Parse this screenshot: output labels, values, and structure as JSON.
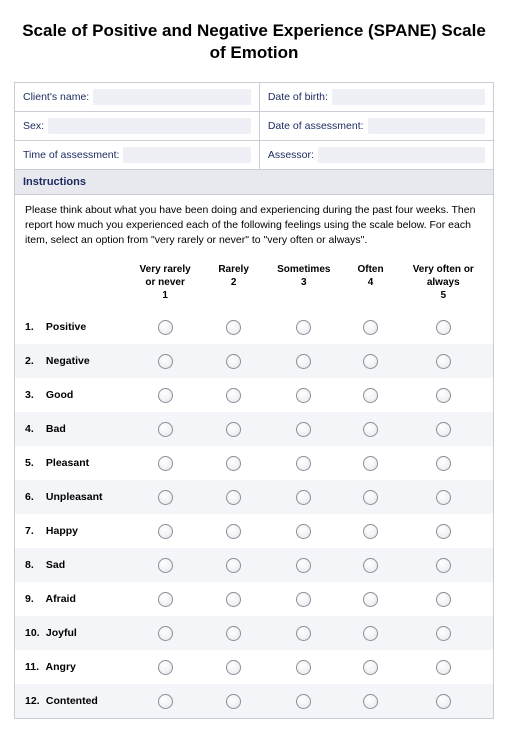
{
  "title": "Scale of Positive and Negative Experience (SPANE) Scale of Emotion",
  "info": {
    "client_name": {
      "label": "Client's name:",
      "value": ""
    },
    "dob": {
      "label": "Date of birth:",
      "value": ""
    },
    "sex": {
      "label": "Sex:",
      "value": ""
    },
    "doa": {
      "label": "Date of assessment:",
      "value": ""
    },
    "toa": {
      "label": "Time of assessment:",
      "value": ""
    },
    "assessor": {
      "label": "Assessor:",
      "value": ""
    }
  },
  "instructions": {
    "header": "Instructions",
    "body": "Please think about what you have been doing and experiencing during the past four weeks. Then report how much you experienced each of the following feelings using the scale below. For each item, select an option from \"very rarely or never\" to \"very often or always\"."
  },
  "columns": [
    {
      "line1": "Very rarely",
      "line2": "or never",
      "num": "1"
    },
    {
      "line1": "Rarely",
      "line2": "",
      "num": "2"
    },
    {
      "line1": "Sometimes",
      "line2": "",
      "num": "3"
    },
    {
      "line1": "Often",
      "line2": "",
      "num": "4"
    },
    {
      "line1": "Very often or",
      "line2": "always",
      "num": "5"
    }
  ],
  "items": [
    {
      "num": "1.",
      "label": "Positive"
    },
    {
      "num": "2.",
      "label": "Negative"
    },
    {
      "num": "3.",
      "label": "Good"
    },
    {
      "num": "4.",
      "label": "Bad"
    },
    {
      "num": "5.",
      "label": "Pleasant"
    },
    {
      "num": "6.",
      "label": "Unpleasant"
    },
    {
      "num": "7.",
      "label": "Happy"
    },
    {
      "num": "8.",
      "label": "Sad"
    },
    {
      "num": "9.",
      "label": "Afraid"
    },
    {
      "num": "10.",
      "label": "Joyful"
    },
    {
      "num": "11.",
      "label": "Angry"
    },
    {
      "num": "12.",
      "label": "Contented"
    }
  ],
  "colors": {
    "border": "#c9cdd6",
    "label_text": "#1a2a5e",
    "input_bg": "#eef0f6",
    "header_bg": "#e8e9ef",
    "row_alt_bg": "#f4f5f8",
    "radio_border": "#8c8f99"
  }
}
